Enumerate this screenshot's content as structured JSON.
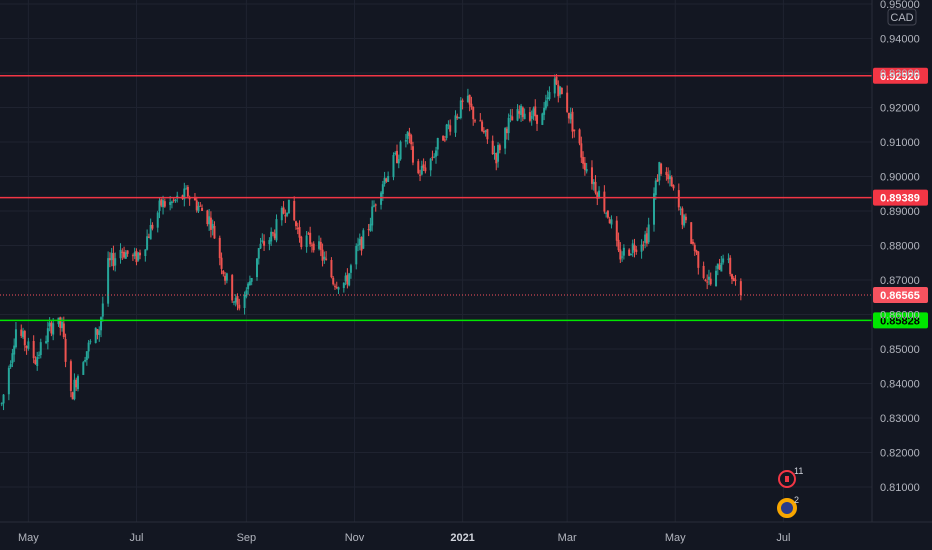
{
  "chart_data": {
    "type": "candlestick",
    "currency_label": "CAD",
    "y_axis": {
      "ticks": [
        0.95,
        0.94,
        0.93,
        0.92,
        0.91,
        0.9,
        0.89,
        0.88,
        0.87,
        0.86,
        0.85,
        0.84,
        0.83,
        0.82,
        0.81
      ],
      "tick_labels": [
        "0.95000",
        "0.94000",
        "0.93000",
        "0.92000",
        "0.91000",
        "0.90000",
        "0.89000",
        "0.88000",
        "0.87000",
        "0.86000",
        "0.85000",
        "0.84000",
        "0.83000",
        "0.82000",
        "0.81000"
      ],
      "range": [
        0.8055,
        0.9525
      ]
    },
    "x_axis": {
      "tick_labels": [
        "May",
        "Jul",
        "Sep",
        "Nov",
        "2021",
        "Mar",
        "May",
        "Jul"
      ],
      "tick_dates": [
        "2020-05-01",
        "2020-07-01",
        "2020-09-01",
        "2020-11-01",
        "2021-01-01",
        "2021-03-01",
        "2021-05-01",
        "2021-07-01"
      ],
      "range": [
        "2020-04-15",
        "2021-08-20"
      ]
    },
    "horizontal_lines": [
      {
        "price": 0.9292,
        "label": "0.92920",
        "color": "#f23645"
      },
      {
        "price": 0.89389,
        "label": "0.89389",
        "color": "#f23645"
      },
      {
        "price": 0.85828,
        "label": "0.85828",
        "color": "#00e600"
      }
    ],
    "last_price": {
      "price": 0.86565,
      "label": "0.86565",
      "color": "#f7525f"
    },
    "series_start": "2020-04-16",
    "series_end": "2021-06-07",
    "price_path": [
      [
        "2020-04-16",
        0.834
      ],
      [
        "2020-04-24",
        0.856
      ],
      [
        "2020-05-05",
        0.847
      ],
      [
        "2020-05-15",
        0.858
      ],
      [
        "2020-05-20",
        0.856
      ],
      [
        "2020-05-25",
        0.836
      ],
      [
        "2020-06-01",
        0.848
      ],
      [
        "2020-06-10",
        0.856
      ],
      [
        "2020-06-15",
        0.874
      ],
      [
        "2020-06-22",
        0.879
      ],
      [
        "2020-06-30",
        0.876
      ],
      [
        "2020-07-05",
        0.88
      ],
      [
        "2020-07-15",
        0.892
      ],
      [
        "2020-07-20",
        0.892
      ],
      [
        "2020-07-30",
        0.895
      ],
      [
        "2020-08-12",
        0.887
      ],
      [
        "2020-08-20",
        0.871
      ],
      [
        "2020-08-27",
        0.862
      ],
      [
        "2020-09-02",
        0.868
      ],
      [
        "2020-09-08",
        0.879
      ],
      [
        "2020-09-16",
        0.883
      ],
      [
        "2020-09-24",
        0.892
      ],
      [
        "2020-10-02",
        0.882
      ],
      [
        "2020-10-10",
        0.881
      ],
      [
        "2020-10-20",
        0.87
      ],
      [
        "2020-10-27",
        0.869
      ],
      [
        "2020-11-02",
        0.878
      ],
      [
        "2020-11-08",
        0.884
      ],
      [
        "2020-11-15",
        0.897
      ],
      [
        "2020-11-22",
        0.903
      ],
      [
        "2020-12-01",
        0.912
      ],
      [
        "2020-12-06",
        0.9
      ],
      [
        "2020-12-14",
        0.905
      ],
      [
        "2020-12-22",
        0.913
      ],
      [
        "2021-01-03",
        0.922
      ],
      [
        "2021-01-13",
        0.912
      ],
      [
        "2021-01-20",
        0.906
      ],
      [
        "2021-01-26",
        0.915
      ],
      [
        "2021-02-05",
        0.919
      ],
      [
        "2021-02-15",
        0.917
      ],
      [
        "2021-02-22",
        0.928
      ],
      [
        "2021-03-01",
        0.92
      ],
      [
        "2021-03-10",
        0.905
      ],
      [
        "2021-03-18",
        0.896
      ],
      [
        "2021-03-25",
        0.888
      ],
      [
        "2021-03-30",
        0.877
      ],
      [
        "2021-04-05",
        0.879
      ],
      [
        "2021-04-15",
        0.883
      ],
      [
        "2021-04-22",
        0.903
      ],
      [
        "2021-04-28",
        0.898
      ],
      [
        "2021-05-04",
        0.889
      ],
      [
        "2021-05-10",
        0.882
      ],
      [
        "2021-05-15",
        0.874
      ],
      [
        "2021-05-22",
        0.868
      ],
      [
        "2021-05-28",
        0.878
      ],
      [
        "2021-06-03",
        0.87
      ],
      [
        "2021-06-07",
        0.8656
      ]
    ],
    "event_badges": [
      {
        "count": "11",
        "icon": "canada-flag-icon"
      },
      {
        "count": "2",
        "icon": "australia-flag-icon"
      }
    ]
  },
  "colors": {
    "background": "#131722",
    "grid": "#1f2330",
    "up": "#26a69a",
    "down": "#ef5350",
    "axis_text": "#b2b5be"
  }
}
